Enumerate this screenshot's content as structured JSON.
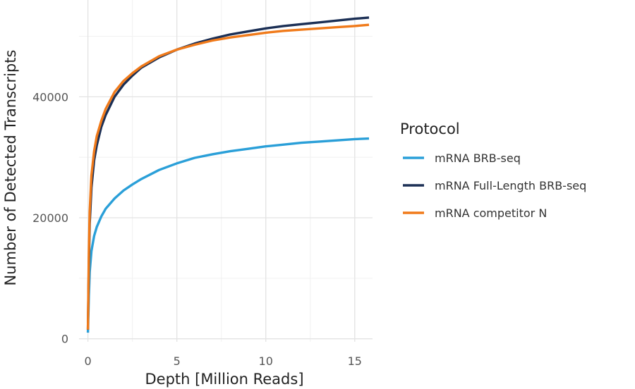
{
  "chart_data": {
    "type": "line",
    "xlabel": "Depth [Million Reads]",
    "ylabel": "Number of Detected Transcripts",
    "xlim": [
      -0.5,
      16
    ],
    "ylim": [
      -500,
      56000
    ],
    "xticks": [
      0,
      5,
      10,
      15
    ],
    "yticks": [
      0,
      20000,
      40000
    ],
    "grid": true,
    "legend": {
      "title": "Protocol",
      "position": "right"
    },
    "series": [
      {
        "name": "mRNA BRB-seq",
        "color": "#2a9fd8",
        "x": [
          0,
          0.05,
          0.1,
          0.2,
          0.35,
          0.5,
          0.75,
          1,
          1.5,
          2,
          2.5,
          3,
          4,
          5,
          6,
          7,
          8,
          9,
          10,
          11,
          12,
          13,
          14,
          15,
          15.8
        ],
        "y": [
          1000,
          7000,
          11000,
          14500,
          17000,
          18500,
          20200,
          21500,
          23200,
          24500,
          25500,
          26400,
          27900,
          29000,
          29900,
          30500,
          31000,
          31400,
          31800,
          32100,
          32400,
          32600,
          32800,
          33000,
          33100
        ]
      },
      {
        "name": "mRNA Full-Length BRB-seq",
        "color": "#1b2f55",
        "x": [
          0,
          0.05,
          0.1,
          0.2,
          0.35,
          0.5,
          0.75,
          1,
          1.5,
          2,
          2.5,
          3,
          4,
          5,
          6,
          7,
          8,
          9,
          10,
          11,
          12,
          13,
          14,
          15,
          15.8
        ],
        "y": [
          1500,
          12000,
          19000,
          25000,
          29500,
          32000,
          35000,
          37000,
          40000,
          42000,
          43500,
          44800,
          46500,
          47800,
          48800,
          49600,
          50300,
          50800,
          51300,
          51700,
          52000,
          52300,
          52600,
          52900,
          53100
        ]
      },
      {
        "name": "mRNA competitor N",
        "color": "#f07a1a",
        "x": [
          0,
          0.05,
          0.1,
          0.2,
          0.35,
          0.5,
          0.75,
          1,
          1.5,
          2,
          2.5,
          3,
          4,
          5,
          6,
          7,
          8,
          9,
          10,
          11,
          12,
          13,
          14,
          15,
          15.8
        ],
        "y": [
          1500,
          14000,
          21000,
          27000,
          31000,
          33500,
          36000,
          38000,
          40800,
          42600,
          43900,
          45000,
          46700,
          47800,
          48600,
          49300,
          49800,
          50200,
          50600,
          50900,
          51100,
          51300,
          51500,
          51700,
          51900
        ]
      }
    ]
  }
}
